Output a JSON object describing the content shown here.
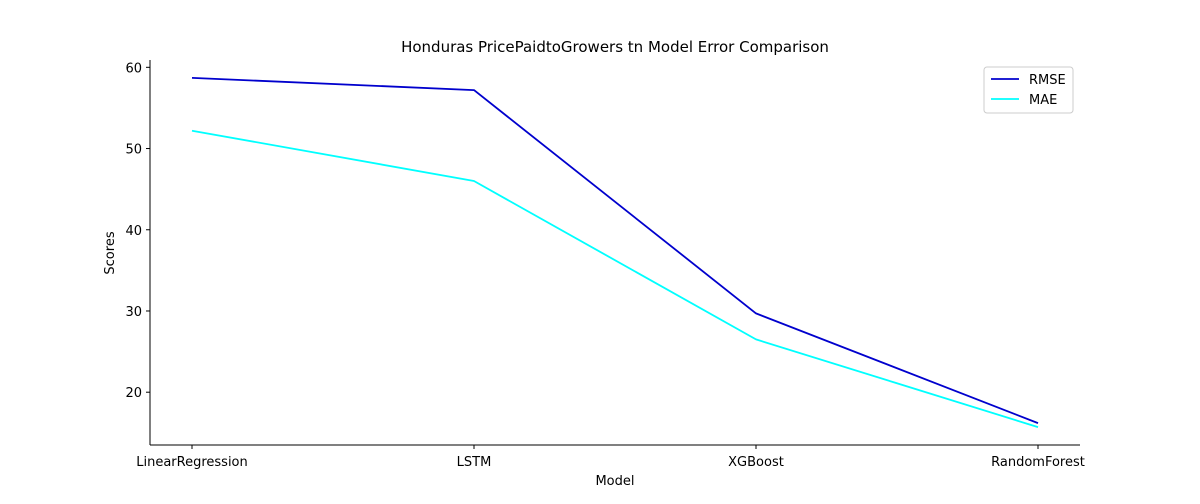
{
  "chart_data": {
    "type": "line",
    "title": "Honduras PricePaidtoGrowers tn Model Error Comparison",
    "xlabel": "Model",
    "ylabel": "Scores",
    "categories": [
      "LinearRegression",
      "LSTM",
      "XGBoost",
      "RandomForest"
    ],
    "series": [
      {
        "name": "RMSE",
        "values": [
          58.7,
          57.2,
          29.7,
          16.2
        ],
        "color": "#0000cd"
      },
      {
        "name": "MAE",
        "values": [
          52.2,
          46.0,
          26.5,
          15.7
        ],
        "color": "#00ffff"
      }
    ],
    "yticks": [
      20,
      30,
      40,
      50,
      60
    ],
    "ylim": [
      13.5,
      60.9
    ],
    "grid": false,
    "legend_position": "top-right"
  }
}
